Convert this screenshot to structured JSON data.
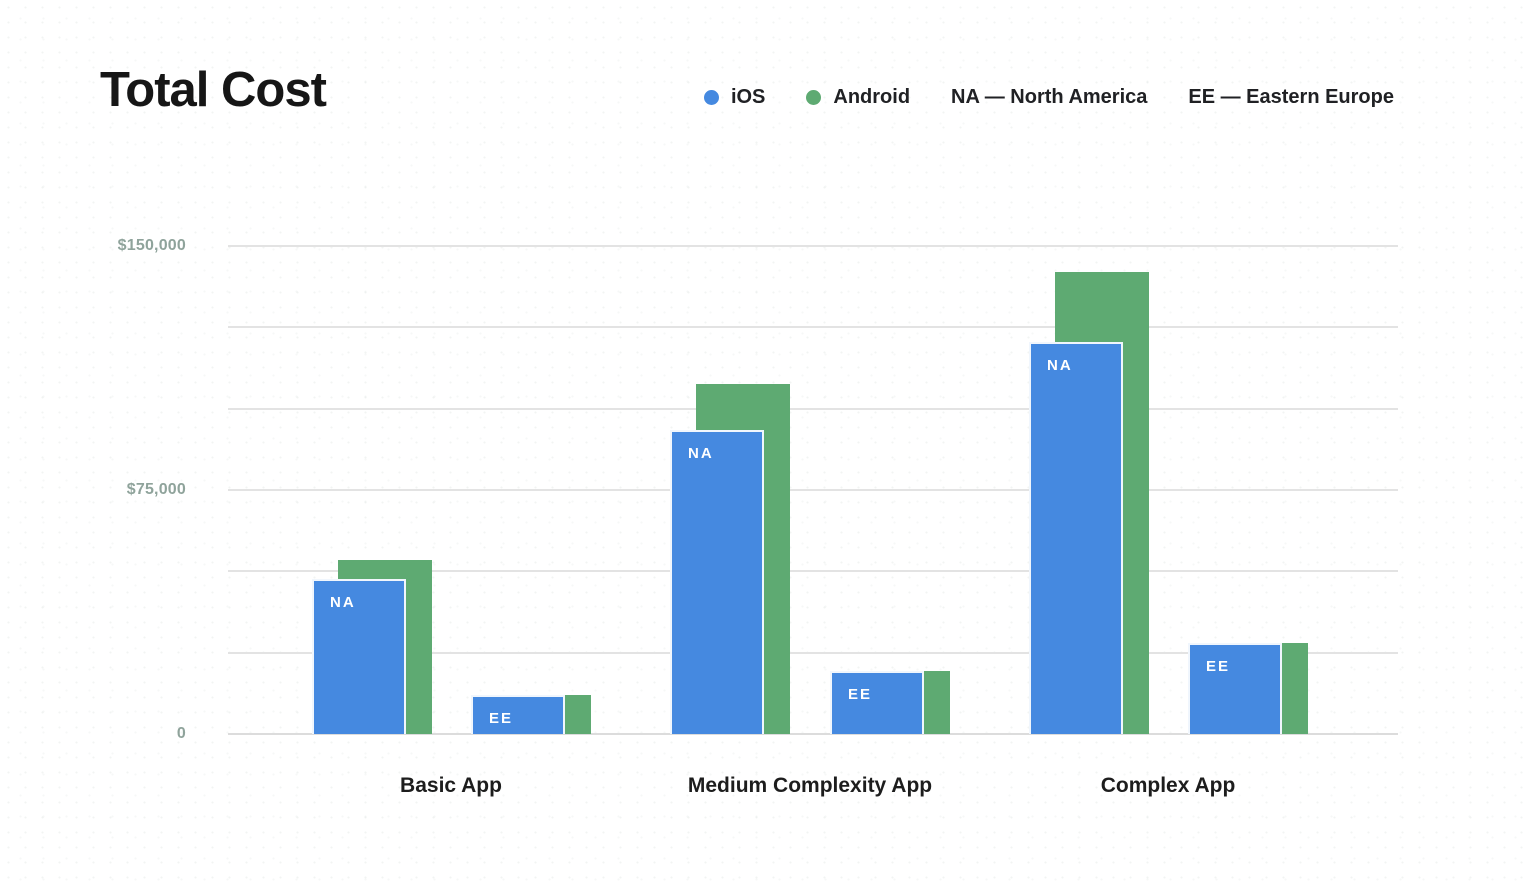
{
  "title": "Total Cost",
  "legend": {
    "series": [
      {
        "label": "iOS",
        "color": "#4589E0"
      },
      {
        "label": "Android",
        "color": "#5EAA72"
      }
    ],
    "notes": [
      "NA — North America",
      "EE — Eastern Europe"
    ]
  },
  "chart_data": {
    "type": "bar",
    "variant": "grouped-overlapping-bars",
    "title": "Total Cost",
    "currency": "USD",
    "categories": [
      "Basic App",
      "Medium Complexity App",
      "Complex App"
    ],
    "series_names": [
      "iOS",
      "Android"
    ],
    "series_colors": {
      "iOS": "#4589E0",
      "Android": "#5EAA72"
    },
    "region_legend": {
      "NA": "North America",
      "EE": "Eastern Europe"
    },
    "groups": [
      {
        "category": "Basic App",
        "pairs": [
          {
            "region": "NA",
            "values": {
              "iOS": 47500,
              "Android": 53500
            }
          },
          {
            "region": "EE",
            "values": {
              "iOS": 12000,
              "Android": 12000
            }
          }
        ]
      },
      {
        "category": "Medium Complexity App",
        "pairs": [
          {
            "region": "NA",
            "values": {
              "iOS": 93500,
              "Android": 107500
            }
          },
          {
            "region": "EE",
            "values": {
              "iOS": 19500,
              "Android": 19500
            }
          }
        ]
      },
      {
        "category": "Complex App",
        "pairs": [
          {
            "region": "NA",
            "values": {
              "iOS": 120500,
              "Android": 142000
            }
          },
          {
            "region": "EE",
            "values": {
              "iOS": 28000,
              "Android": 28000
            }
          }
        ]
      }
    ],
    "ylim": [
      0,
      150000
    ],
    "gridline_step": 25000,
    "yticks": [
      {
        "value": 0,
        "label": "0"
      },
      {
        "value": 75000,
        "label": "$75,000"
      },
      {
        "value": 150000,
        "label": "$150,000"
      }
    ],
    "grid": true,
    "legend_position": "top-right"
  },
  "colors": {
    "ios_blue": "#4589E0",
    "android_green": "#5EAA72",
    "axis_label": "#8FA39B",
    "gridline": "#E3E3E3",
    "title_text": "#161616",
    "category_label": "#1D1D1D",
    "legend_text": "#202124",
    "bar_label_text": "#FFFFFF"
  }
}
